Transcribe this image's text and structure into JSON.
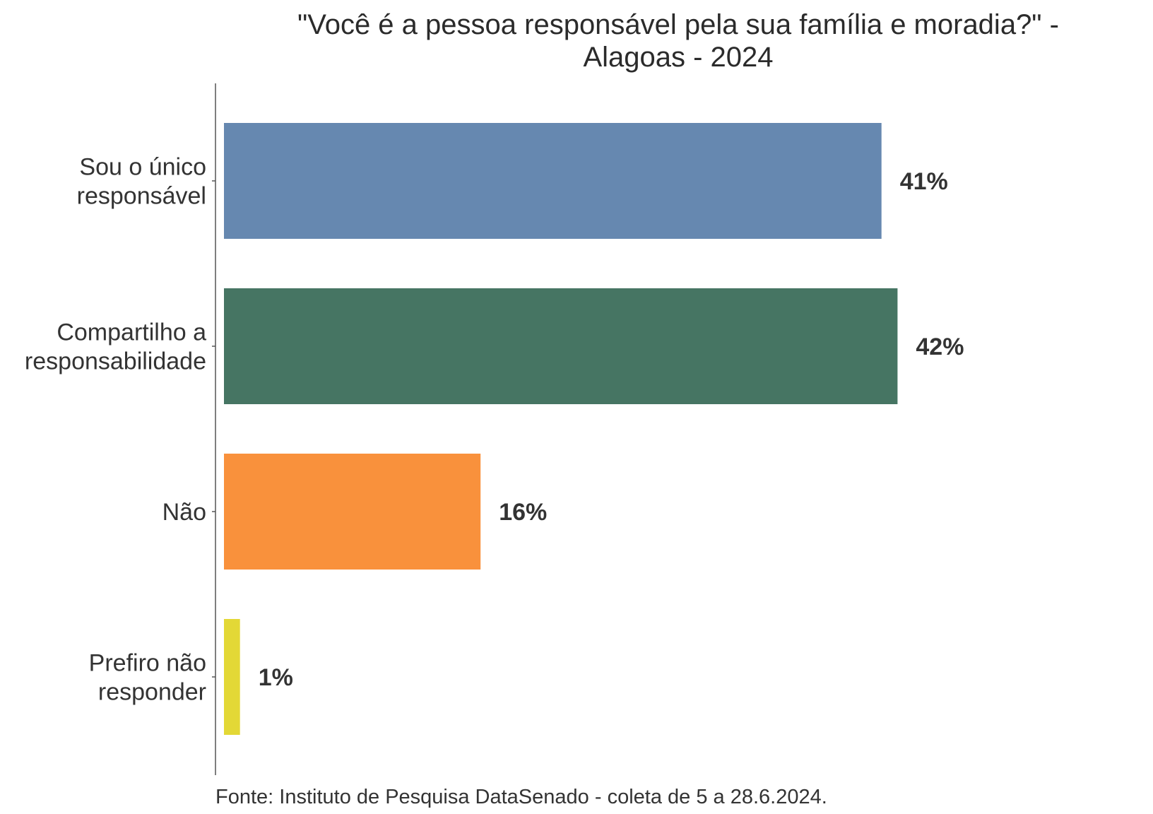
{
  "chart_data": {
    "type": "bar",
    "orientation": "horizontal",
    "title_lines": [
      "\"Você é a pessoa responsável pela sua família e moradia?\" -",
      "Alagoas - 2024"
    ],
    "categories": [
      [
        "Sou o único",
        "responsável"
      ],
      [
        "Compartilho a",
        "responsabilidade"
      ],
      [
        "Não"
      ],
      [
        "Prefiro não",
        "responder"
      ]
    ],
    "values": [
      41,
      42,
      16,
      1
    ],
    "value_labels": [
      "41%",
      "42%",
      "16%",
      "1%"
    ],
    "colors": [
      "#6688b0",
      "#467563",
      "#f9913c",
      "#e3d836"
    ],
    "xlim": [
      0,
      45
    ],
    "grid": false,
    "legend": "none",
    "caption": "Fonte: Instituto de Pesquisa DataSenado - coleta de 5 a 28.6.2024."
  }
}
